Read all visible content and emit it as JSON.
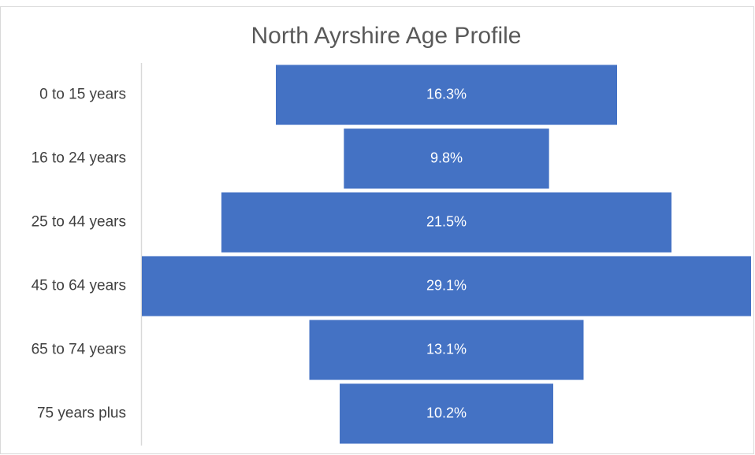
{
  "chart_data": {
    "type": "funnel",
    "title": "North Ayrshire Age Profile",
    "categories": [
      "0 to 15 years",
      "16 to 24 years",
      "25 to 44 years",
      "45 to 64 years",
      "65 to 74 years",
      "75 years plus"
    ],
    "values": [
      16.3,
      9.8,
      21.5,
      29.1,
      13.1,
      10.2
    ],
    "value_labels": [
      "16.3%",
      "9.8%",
      "21.5%",
      "29.1%",
      "13.1%",
      "10.2%"
    ],
    "color": "#4472c4"
  }
}
